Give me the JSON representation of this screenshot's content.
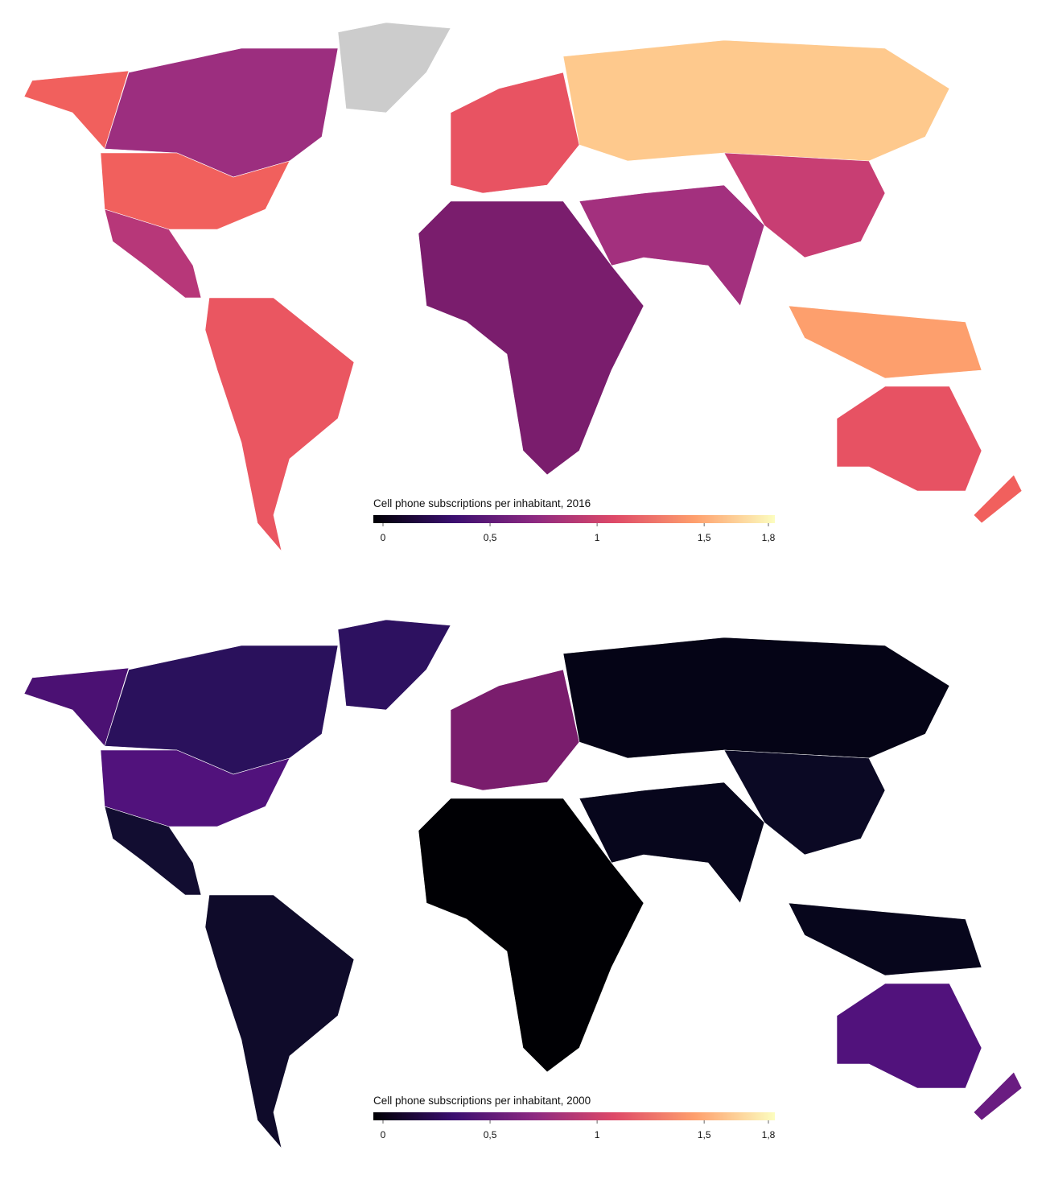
{
  "chart_data": [
    {
      "type": "choropleth",
      "title": "Cell phone subscriptions per inhabitant, 2016",
      "xlim": [
        0,
        1.8
      ],
      "xticks": [
        0,
        {
          "value": 0.5,
          "label": "0,5"
        },
        1,
        {
          "value": 1.5,
          "label": "1,5"
        },
        {
          "value": 1.8,
          "label": "1,8"
        }
      ],
      "colors": [
        "#000004",
        "#3b0f70",
        "#8c2981",
        "#de4968",
        "#fe9f6d",
        "#fcfdbf"
      ]
    },
    {
      "type": "choropleth",
      "title": "Cell phone subscriptions per inhabitant, 2000",
      "xlim": [
        0,
        1.8
      ],
      "xticks": [
        0,
        {
          "value": 0.5,
          "label": "0,5"
        },
        1,
        {
          "value": 1.5,
          "label": "1,5"
        },
        {
          "value": 1.8,
          "label": "1,8"
        }
      ],
      "colors": [
        "#000004",
        "#3b0f70",
        "#8c2981",
        "#de4968",
        "#fe9f6d",
        "#fcfdbf"
      ]
    }
  ]
}
